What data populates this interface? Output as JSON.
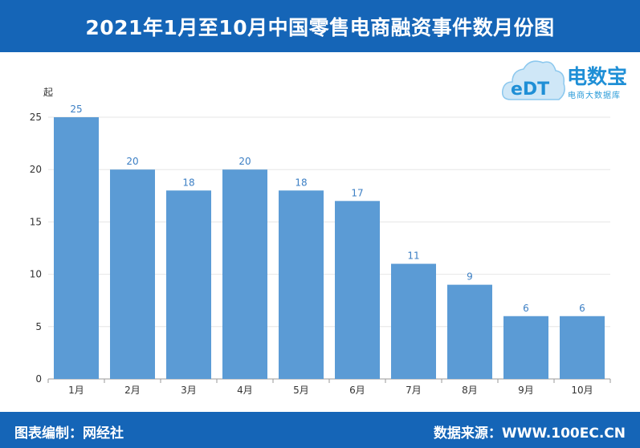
{
  "header": {
    "title": "2021年1月至10月中国零售电商融资事件数月份图"
  },
  "logo": {
    "icon_text": "eDT",
    "name": "电数宝",
    "tagline": "电商大数据库"
  },
  "footer": {
    "left": "图表编制：网经社",
    "right": "数据来源：WWW.100EC.CN"
  },
  "colors": {
    "brand": "#1565b7",
    "bar": "#5b9bd5",
    "value_label": "#3c7fc4"
  },
  "chart_data": {
    "type": "bar",
    "unit_label": "起",
    "categories": [
      "1月",
      "2月",
      "3月",
      "4月",
      "5月",
      "6月",
      "7月",
      "8月",
      "9月",
      "10月"
    ],
    "values": [
      25,
      20,
      18,
      20,
      18,
      17,
      11,
      9,
      6,
      6
    ],
    "ylim": [
      0,
      25
    ],
    "yticks": [
      0,
      5,
      10,
      15,
      20,
      25
    ],
    "grid": true,
    "data_labels": true
  }
}
